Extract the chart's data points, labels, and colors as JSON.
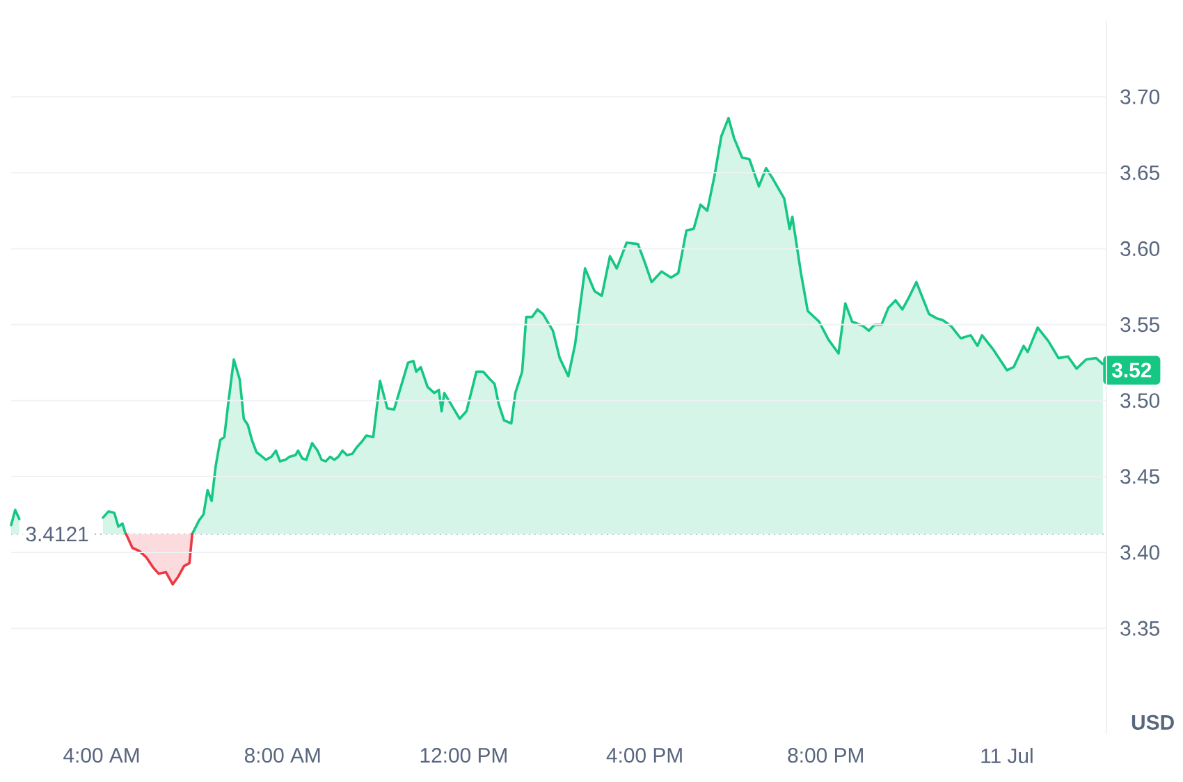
{
  "chart_data": {
    "type": "area",
    "ylabel": "USD",
    "xlim": [
      2,
      26.2
    ],
    "ylim": [
      3.28,
      3.75
    ],
    "xticks": [
      {
        "value": 4,
        "label": "4:00 AM"
      },
      {
        "value": 8,
        "label": "8:00 AM"
      },
      {
        "value": 12,
        "label": "12:00 PM"
      },
      {
        "value": 16,
        "label": "4:00 PM"
      },
      {
        "value": 20,
        "label": "8:00 PM"
      },
      {
        "value": 24,
        "label": "11 Jul"
      }
    ],
    "yticks": [
      {
        "value": 3.35,
        "label": "3.35"
      },
      {
        "value": 3.4,
        "label": "3.40"
      },
      {
        "value": 3.45,
        "label": "3.45"
      },
      {
        "value": 3.5,
        "label": "3.50"
      },
      {
        "value": 3.55,
        "label": "3.55"
      },
      {
        "value": 3.6,
        "label": "3.60"
      },
      {
        "value": 3.65,
        "label": "3.65"
      },
      {
        "value": 3.7,
        "label": "3.70"
      }
    ],
    "grid": "y",
    "ref_lines": [
      {
        "axis": "y",
        "value": 3.4121,
        "label": "3.4121",
        "line_style": "dotted",
        "color": "#a6b0c3"
      }
    ],
    "annotations": [
      {
        "text": "3.52",
        "x": 26.12,
        "y": 3.52
      }
    ],
    "series": [
      {
        "color": "#16c784",
        "x": [
          2.0,
          2.09,
          2.18,
          3.0,
          4.03,
          4.15,
          4.28,
          4.37,
          4.46,
          4.52,
          4.54,
          5.26,
          6.0,
          6.15,
          6.25,
          6.34,
          6.43,
          6.52,
          6.62,
          6.71,
          6.8,
          6.92,
          7.05,
          7.14,
          7.23,
          7.32,
          7.42,
          7.51,
          7.63,
          7.75,
          7.85,
          7.94,
          8.06,
          8.15,
          8.28,
          8.34,
          8.43,
          8.52,
          8.65,
          8.77,
          8.86,
          8.95,
          9.05,
          9.14,
          9.23,
          9.32,
          9.42,
          9.54,
          9.63,
          9.75,
          9.85,
          10.0,
          10.15,
          10.31,
          10.46,
          10.77,
          10.89,
          10.95,
          11.05,
          11.2,
          11.35,
          11.45,
          11.51,
          11.57,
          11.69,
          11.91,
          12.06,
          12.28,
          12.43,
          12.58,
          12.68,
          12.77,
          12.89,
          13.05,
          13.14,
          13.29,
          13.38,
          13.51,
          13.63,
          13.75,
          13.97,
          14.12,
          14.31,
          14.46,
          14.68,
          14.89,
          15.05,
          15.23,
          15.38,
          15.6,
          15.85,
          16.0,
          16.15,
          16.37,
          16.58,
          16.74,
          16.92,
          17.08,
          17.23,
          17.38,
          17.54,
          17.69,
          17.85,
          17.97,
          18.15,
          18.31,
          18.52,
          18.68,
          18.83,
          19.08,
          19.2,
          19.26,
          19.45,
          19.6,
          19.85,
          20.06,
          20.28,
          20.43,
          20.58,
          20.83,
          20.95,
          21.08,
          21.23,
          21.38,
          21.54,
          21.69,
          21.82,
          22.0,
          22.28,
          22.46,
          22.58,
          22.77,
          22.98,
          23.2,
          23.35,
          23.45,
          23.69,
          24.0,
          24.15,
          24.37,
          24.46,
          24.68,
          24.92,
          25.14,
          25.35,
          25.54,
          25.75,
          25.97,
          26.12
        ],
        "values": [
          3.418,
          3.428,
          3.422,
          null,
          3.423,
          3.427,
          3.426,
          3.417,
          3.419,
          3.413,
          3.4121,
          null,
          3.4121,
          3.421,
          3.425,
          3.441,
          3.434,
          3.457,
          3.474,
          3.476,
          3.499,
          3.527,
          3.514,
          3.488,
          3.484,
          3.474,
          3.466,
          3.464,
          3.461,
          3.463,
          3.467,
          3.46,
          3.461,
          3.463,
          3.464,
          3.467,
          3.462,
          3.461,
          3.472,
          3.467,
          3.461,
          3.46,
          3.463,
          3.461,
          3.463,
          3.467,
          3.464,
          3.465,
          3.469,
          3.473,
          3.477,
          3.476,
          3.513,
          3.495,
          3.494,
          3.525,
          3.526,
          3.519,
          3.522,
          3.509,
          3.505,
          3.507,
          3.493,
          3.505,
          3.499,
          3.488,
          3.493,
          3.519,
          3.519,
          3.514,
          3.511,
          3.498,
          3.487,
          3.485,
          3.505,
          3.519,
          3.555,
          3.555,
          3.56,
          3.557,
          3.546,
          3.528,
          3.516,
          3.537,
          3.587,
          3.572,
          3.569,
          3.595,
          3.587,
          3.604,
          3.603,
          3.591,
          3.578,
          3.585,
          3.581,
          3.584,
          3.612,
          3.613,
          3.629,
          3.625,
          3.648,
          3.674,
          3.686,
          3.673,
          3.66,
          3.659,
          3.641,
          3.653,
          3.646,
          3.633,
          3.613,
          3.621,
          3.584,
          3.559,
          3.552,
          3.54,
          3.531,
          3.564,
          3.552,
          3.549,
          3.546,
          3.55,
          3.55,
          3.561,
          3.566,
          3.56,
          3.567,
          3.578,
          3.557,
          3.554,
          3.553,
          3.549,
          3.541,
          3.543,
          3.536,
          3.543,
          3.534,
          3.52,
          3.522,
          3.536,
          3.532,
          3.548,
          3.539,
          3.528,
          3.529,
          3.521,
          3.527,
          3.528,
          3.524
        ]
      },
      {
        "color": "#ea3943",
        "x": [
          4.54,
          4.68,
          4.83,
          4.98,
          5.14,
          5.26,
          5.42,
          5.57,
          5.69,
          5.82,
          5.94,
          6.0
        ],
        "values": [
          3.4121,
          3.403,
          3.401,
          3.397,
          3.39,
          3.386,
          3.387,
          3.379,
          3.384,
          3.391,
          3.393,
          3.4121
        ]
      }
    ]
  }
}
